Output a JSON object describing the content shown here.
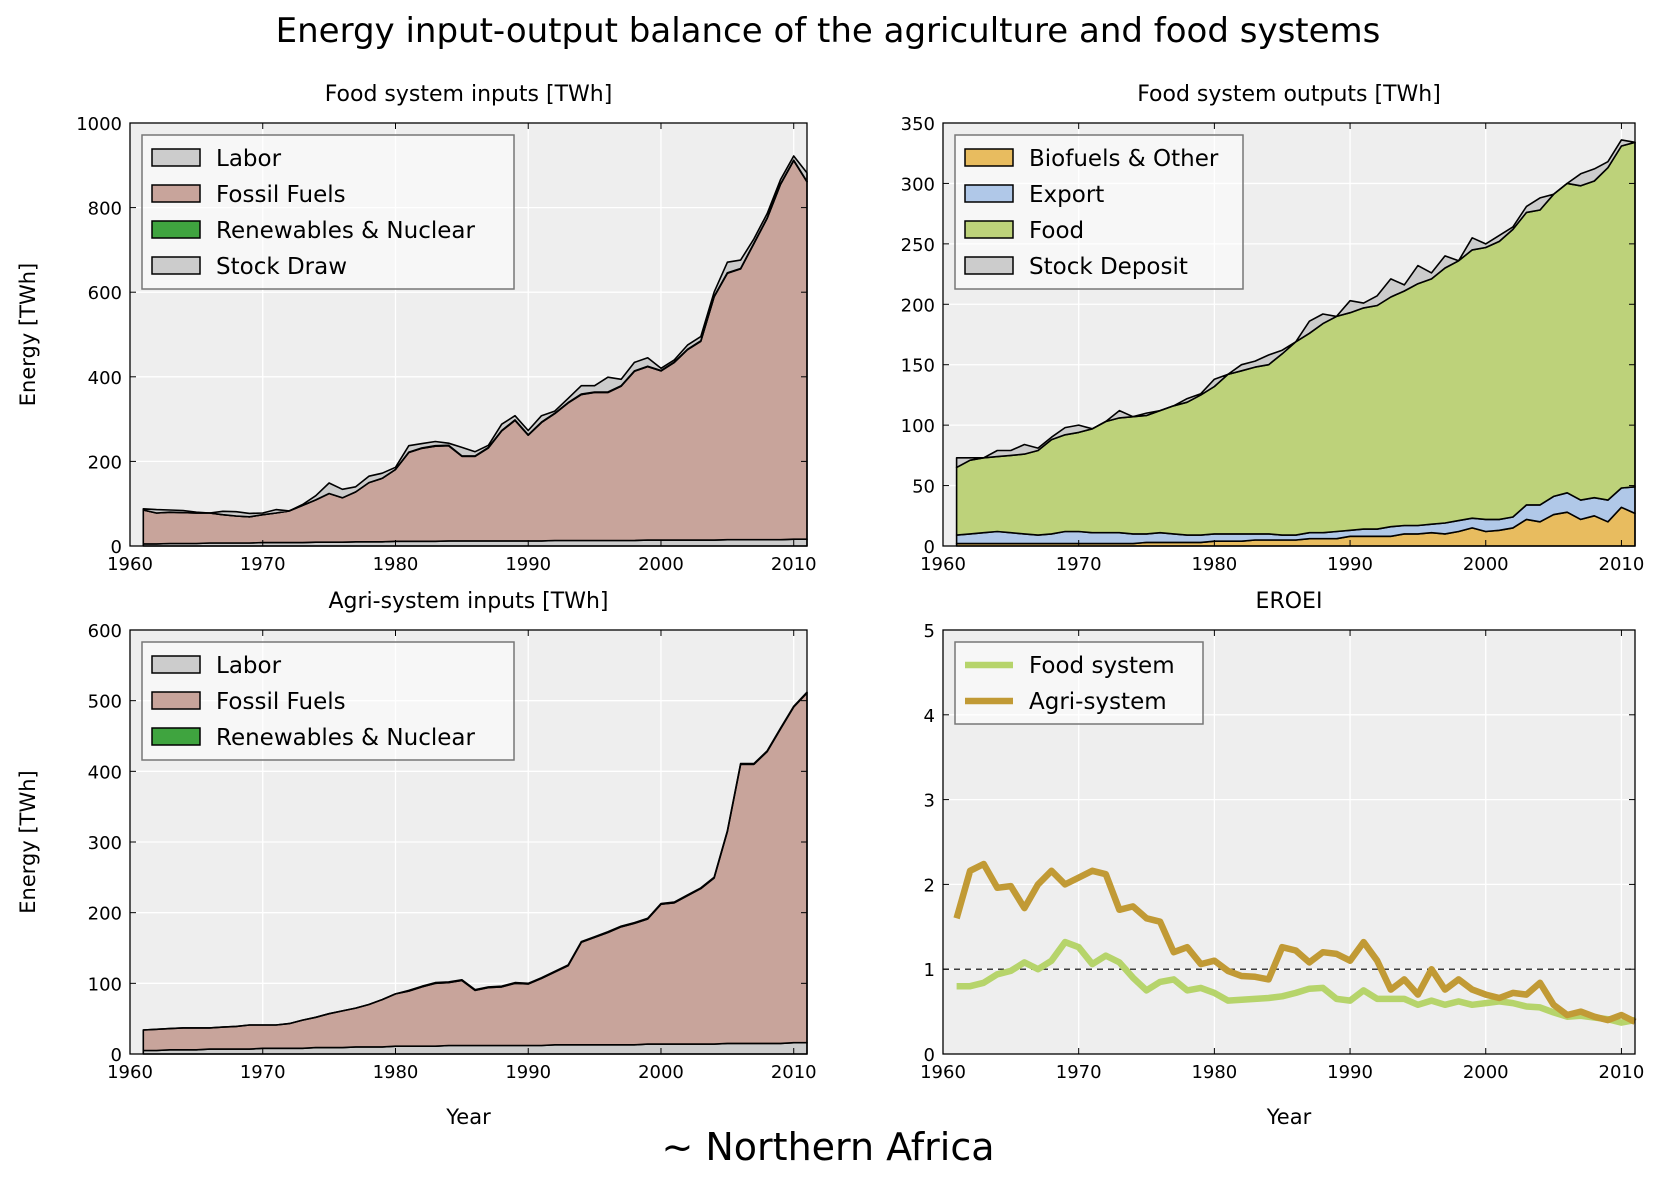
{
  "figure": {
    "title": "Energy input-output balance of the agriculture and food systems",
    "subtitle": "~ Northern Africa"
  },
  "colors": {
    "labor": "#cccccc",
    "fossil": "#c8a49b",
    "renew": "#3fa43f",
    "stock": "#cccccc",
    "biofuels": "#e8bc5f",
    "export": "#b0c8e8",
    "food": "#bdd27a",
    "eroei_food": "#b6d46b",
    "eroei_agri": "#c19a35",
    "panel_bg": "#eeeeee"
  },
  "chart_data": [
    {
      "id": "food-inputs",
      "type": "area",
      "title": "Food system inputs [TWh]",
      "xlabel": "",
      "ylabel": "Energy [TWh]",
      "xlim": [
        1960,
        2011
      ],
      "ylim": [
        0,
        1000
      ],
      "xticks": [
        "1960",
        "1970",
        "1980",
        "1990",
        "2000",
        "2010"
      ],
      "yticks": [
        "0",
        "200",
        "400",
        "600",
        "800",
        "1000"
      ],
      "legend_position": "top-left",
      "stacked": true,
      "x": [
        1961,
        1962,
        1963,
        1964,
        1965,
        1966,
        1967,
        1968,
        1969,
        1970,
        1971,
        1972,
        1973,
        1974,
        1975,
        1976,
        1977,
        1978,
        1979,
        1980,
        1981,
        1982,
        1983,
        1984,
        1985,
        1986,
        1987,
        1988,
        1989,
        1990,
        1991,
        1992,
        1993,
        1994,
        1995,
        1996,
        1997,
        1998,
        1999,
        2000,
        2001,
        2002,
        2003,
        2004,
        2005,
        2006,
        2007,
        2008,
        2009,
        2010,
        2011
      ],
      "series": [
        {
          "name": "Labor",
          "color_key": "labor",
          "values": [
            5,
            5,
            6,
            6,
            6,
            7,
            7,
            7,
            7,
            8,
            8,
            8,
            8,
            9,
            9,
            9,
            10,
            10,
            10,
            11,
            11,
            11,
            11,
            12,
            12,
            12,
            12,
            12,
            12,
            12,
            12,
            13,
            13,
            13,
            13,
            13,
            13,
            13,
            14,
            14,
            14,
            14,
            14,
            14,
            15,
            15,
            15,
            15,
            15,
            16,
            16
          ]
        },
        {
          "name": "Fossil Fuels",
          "color_key": "fossil",
          "values": [
            80,
            73,
            74,
            73,
            72,
            71,
            67,
            64,
            62,
            66,
            70,
            75,
            88,
            100,
            115,
            105,
            118,
            140,
            150,
            170,
            210,
            220,
            225,
            225,
            200,
            200,
            220,
            260,
            285,
            250,
            280,
            300,
            325,
            345,
            350,
            350,
            365,
            400,
            410,
            400,
            420,
            450,
            470,
            575,
            630,
            640,
            700,
            760,
            840,
            895,
            845
          ]
        },
        {
          "name": "Renewables & Nuclear",
          "color_key": "renew",
          "values": [
            0,
            0,
            0,
            0,
            0,
            0,
            0,
            0,
            0,
            0,
            0,
            0,
            0,
            0,
            0,
            0,
            0,
            0,
            0,
            0,
            1,
            1,
            1,
            1,
            1,
            1,
            1,
            1,
            1,
            1,
            1,
            1,
            1,
            1,
            1,
            1,
            1,
            1,
            1,
            1,
            1,
            1,
            1,
            1,
            1,
            1,
            1,
            1,
            1,
            1,
            1
          ]
        },
        {
          "name": "Stock Draw",
          "color_key": "stock",
          "values": [
            3,
            8,
            5,
            5,
            2,
            0,
            8,
            10,
            8,
            4,
            8,
            0,
            2,
            10,
            25,
            20,
            12,
            15,
            12,
            5,
            15,
            10,
            10,
            5,
            20,
            10,
            5,
            15,
            10,
            10,
            15,
            5,
            10,
            20,
            15,
            35,
            15,
            20,
            20,
            5,
            5,
            10,
            10,
            10,
            25,
            20,
            10,
            10,
            10,
            10,
            20
          ]
        }
      ]
    },
    {
      "id": "food-outputs",
      "type": "area",
      "title": "Food system outputs [TWh]",
      "xlabel": "",
      "ylabel": "",
      "xlim": [
        1960,
        2011
      ],
      "ylim": [
        0,
        350
      ],
      "xticks": [
        "1960",
        "1970",
        "1980",
        "1990",
        "2000",
        "2010"
      ],
      "yticks": [
        "0",
        "50",
        "100",
        "150",
        "200",
        "250",
        "300",
        "350"
      ],
      "legend_position": "top-left",
      "stacked": true,
      "x": [
        1961,
        1962,
        1963,
        1964,
        1965,
        1966,
        1967,
        1968,
        1969,
        1970,
        1971,
        1972,
        1973,
        1974,
        1975,
        1976,
        1977,
        1978,
        1979,
        1980,
        1981,
        1982,
        1983,
        1984,
        1985,
        1986,
        1987,
        1988,
        1989,
        1990,
        1991,
        1992,
        1993,
        1994,
        1995,
        1996,
        1997,
        1998,
        1999,
        2000,
        2001,
        2002,
        2003,
        2004,
        2005,
        2006,
        2007,
        2008,
        2009,
        2010,
        2011
      ],
      "series": [
        {
          "name": "Biofuels & Other",
          "color_key": "biofuels",
          "values": [
            2,
            2,
            2,
            2,
            2,
            2,
            2,
            2,
            2,
            2,
            2,
            2,
            2,
            2,
            3,
            3,
            3,
            3,
            3,
            4,
            4,
            4,
            5,
            5,
            5,
            5,
            6,
            6,
            6,
            8,
            8,
            8,
            8,
            10,
            10,
            11,
            10,
            12,
            15,
            12,
            13,
            15,
            22,
            20,
            26,
            28,
            22,
            25,
            20,
            32,
            27
          ]
        },
        {
          "name": "Export",
          "color_key": "export",
          "values": [
            7,
            8,
            9,
            10,
            9,
            8,
            7,
            8,
            10,
            10,
            9,
            9,
            9,
            8,
            7,
            8,
            7,
            6,
            6,
            6,
            6,
            6,
            5,
            5,
            4,
            4,
            5,
            5,
            6,
            5,
            6,
            6,
            8,
            7,
            7,
            7,
            9,
            9,
            8,
            10,
            9,
            9,
            12,
            14,
            15,
            16,
            16,
            15,
            18,
            16,
            22
          ]
        },
        {
          "name": "Food",
          "color_key": "food",
          "values": [
            56,
            61,
            62,
            62,
            64,
            66,
            70,
            78,
            80,
            82,
            86,
            92,
            95,
            97,
            98,
            101,
            106,
            110,
            116,
            122,
            132,
            135,
            138,
            140,
            150,
            160,
            165,
            173,
            178,
            180,
            183,
            185,
            190,
            194,
            200,
            203,
            211,
            215,
            222,
            225,
            230,
            238,
            242,
            244,
            250,
            256,
            260,
            262,
            275,
            283,
            285
          ]
        },
        {
          "name": "Stock Deposit",
          "color_key": "stock",
          "values": [
            8,
            2,
            0,
            5,
            4,
            8,
            2,
            2,
            6,
            6,
            0,
            0,
            6,
            0,
            2,
            0,
            0,
            3,
            1,
            6,
            0,
            5,
            5,
            8,
            3,
            0,
            10,
            8,
            0,
            10,
            4,
            8,
            15,
            5,
            15,
            5,
            10,
            0,
            10,
            3,
            5,
            2,
            5,
            10,
            0,
            0,
            10,
            10,
            5,
            5,
            0
          ]
        }
      ]
    },
    {
      "id": "agri-inputs",
      "type": "area",
      "title": "Agri-system inputs [TWh]",
      "xlabel": "Year",
      "ylabel": "Energy [TWh]",
      "xlim": [
        1960,
        2011
      ],
      "ylim": [
        0,
        600
      ],
      "xticks": [
        "1960",
        "1970",
        "1980",
        "1990",
        "2000",
        "2010"
      ],
      "yticks": [
        "0",
        "100",
        "200",
        "300",
        "400",
        "500",
        "600"
      ],
      "legend_position": "top-left",
      "stacked": true,
      "x": [
        1961,
        1962,
        1963,
        1964,
        1965,
        1966,
        1967,
        1968,
        1969,
        1970,
        1971,
        1972,
        1973,
        1974,
        1975,
        1976,
        1977,
        1978,
        1979,
        1980,
        1981,
        1982,
        1983,
        1984,
        1985,
        1986,
        1987,
        1988,
        1989,
        1990,
        1991,
        1992,
        1993,
        1994,
        1995,
        1996,
        1997,
        1998,
        1999,
        2000,
        2001,
        2002,
        2003,
        2004,
        2005,
        2006,
        2007,
        2008,
        2009,
        2010,
        2011
      ],
      "series": [
        {
          "name": "Labor",
          "color_key": "labor",
          "values": [
            5,
            5,
            6,
            6,
            6,
            7,
            7,
            7,
            7,
            8,
            8,
            8,
            8,
            9,
            9,
            9,
            10,
            10,
            10,
            11,
            11,
            11,
            11,
            12,
            12,
            12,
            12,
            12,
            12,
            12,
            12,
            13,
            13,
            13,
            13,
            13,
            13,
            13,
            14,
            14,
            14,
            14,
            14,
            14,
            15,
            15,
            15,
            15,
            15,
            16,
            16
          ]
        },
        {
          "name": "Fossil Fuels",
          "color_key": "fossil",
          "values": [
            29,
            30,
            30,
            31,
            31,
            30,
            31,
            32,
            34,
            33,
            33,
            35,
            40,
            43,
            48,
            52,
            55,
            60,
            67,
            74,
            78,
            84,
            89,
            89,
            92,
            78,
            82,
            83,
            88,
            87,
            95,
            103,
            112,
            145,
            152,
            159,
            167,
            172,
            177,
            198,
            200,
            210,
            220,
            235,
            300,
            395,
            395,
            413,
            445,
            475,
            495
          ]
        },
        {
          "name": "Renewables & Nuclear",
          "color_key": "renew",
          "values": [
            0,
            0,
            0,
            0,
            0,
            0,
            0,
            0,
            0,
            0,
            0,
            0,
            0,
            0,
            0,
            0,
            0,
            0,
            0,
            0,
            1,
            1,
            1,
            1,
            1,
            1,
            1,
            1,
            1,
            1,
            1,
            1,
            1,
            1,
            1,
            1,
            1,
            1,
            1,
            1,
            1,
            1,
            1,
            1,
            1,
            1,
            1,
            1,
            1,
            1,
            1
          ]
        }
      ]
    },
    {
      "id": "eroei",
      "type": "line",
      "title": "EROEI",
      "xlabel": "Year",
      "ylabel": "",
      "xlim": [
        1960,
        2011
      ],
      "ylim": [
        0,
        5
      ],
      "xticks": [
        "1960",
        "1970",
        "1980",
        "1990",
        "2000",
        "2010"
      ],
      "yticks": [
        "0",
        "1",
        "2",
        "3",
        "4",
        "5"
      ],
      "legend_position": "top-left",
      "reference_line": 1,
      "x": [
        1961,
        1962,
        1963,
        1964,
        1965,
        1966,
        1967,
        1968,
        1969,
        1970,
        1971,
        1972,
        1973,
        1974,
        1975,
        1976,
        1977,
        1978,
        1979,
        1980,
        1981,
        1982,
        1983,
        1984,
        1985,
        1986,
        1987,
        1988,
        1989,
        1990,
        1991,
        1992,
        1993,
        1994,
        1995,
        1996,
        1997,
        1998,
        1999,
        2000,
        2001,
        2002,
        2003,
        2004,
        2005,
        2006,
        2007,
        2008,
        2009,
        2010,
        2011
      ],
      "series": [
        {
          "name": "Food system",
          "color_key": "eroei_food",
          "values": [
            0.8,
            0.8,
            0.84,
            0.94,
            0.98,
            1.08,
            1.0,
            1.1,
            1.32,
            1.26,
            1.06,
            1.16,
            1.08,
            0.9,
            0.75,
            0.85,
            0.88,
            0.75,
            0.78,
            0.72,
            0.63,
            0.64,
            0.65,
            0.66,
            0.68,
            0.72,
            0.77,
            0.78,
            0.65,
            0.63,
            0.75,
            0.65,
            0.65,
            0.65,
            0.58,
            0.63,
            0.58,
            0.62,
            0.58,
            0.6,
            0.62,
            0.6,
            0.56,
            0.55,
            0.49,
            0.44,
            0.45,
            0.43,
            0.41,
            0.37,
            0.4
          ]
        },
        {
          "name": "Agri-system",
          "color_key": "eroei_agri",
          "values": [
            1.6,
            2.16,
            2.24,
            1.96,
            1.98,
            1.72,
            2.0,
            2.16,
            2.0,
            2.08,
            2.16,
            2.12,
            1.7,
            1.74,
            1.6,
            1.56,
            1.2,
            1.26,
            1.06,
            1.1,
            0.98,
            0.92,
            0.91,
            0.88,
            1.26,
            1.22,
            1.08,
            1.2,
            1.18,
            1.1,
            1.32,
            1.1,
            0.76,
            0.88,
            0.7,
            1.0,
            0.76,
            0.88,
            0.76,
            0.7,
            0.66,
            0.72,
            0.7,
            0.84,
            0.58,
            0.46,
            0.5,
            0.44,
            0.4,
            0.46,
            0.38
          ]
        }
      ]
    }
  ]
}
